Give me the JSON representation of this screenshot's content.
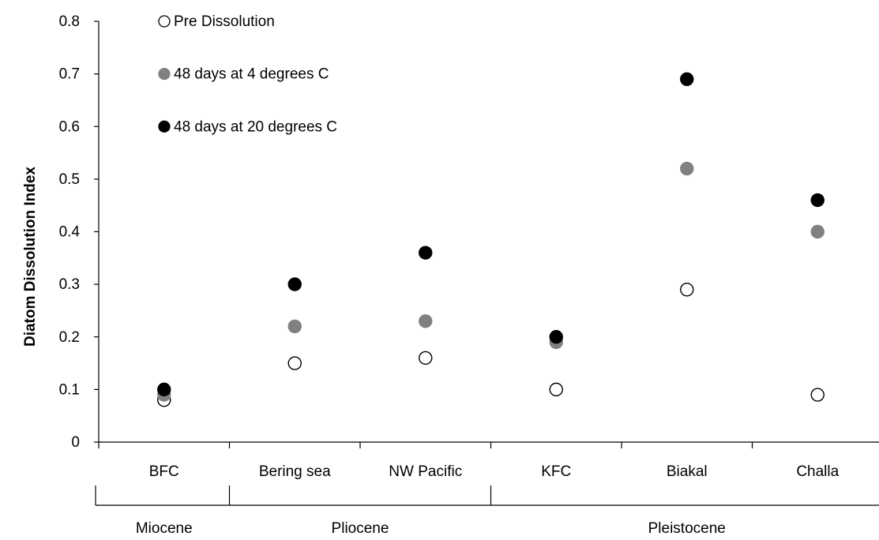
{
  "chart_data": {
    "type": "scatter",
    "ylabel": "Diatom Dissolution Index",
    "xlabel": "",
    "ylim": [
      0,
      0.8
    ],
    "yticks": [
      "0",
      "0.1",
      "0.2",
      "0.3",
      "0.4",
      "0.5",
      "0.6",
      "0.7",
      "0.8"
    ],
    "grid": false,
    "legend_position": "top-left",
    "categories": [
      "BFC",
      "Bering sea",
      "NW Pacific",
      "KFC",
      "Biakal",
      "Challa"
    ],
    "groups": [
      {
        "label": "Miocene",
        "span": [
          0,
          0
        ]
      },
      {
        "label": "Pliocene",
        "span": [
          1,
          2
        ]
      },
      {
        "label": "Pleistocene",
        "span": [
          3,
          5
        ]
      }
    ],
    "series": [
      {
        "name": "Pre Dissolution",
        "fill": "#ffffff",
        "stroke": "#000000",
        "values": [
          0.08,
          0.15,
          0.16,
          0.1,
          0.29,
          0.09
        ]
      },
      {
        "name": "48 days at 4 degrees C",
        "fill": "#808080",
        "stroke": "#808080",
        "values": [
          0.09,
          0.22,
          0.23,
          0.19,
          0.52,
          0.4
        ]
      },
      {
        "name": "48 days at 20 degrees C",
        "fill": "#000000",
        "stroke": "#000000",
        "values": [
          0.1,
          0.3,
          0.36,
          0.2,
          0.69,
          0.46
        ]
      }
    ]
  }
}
